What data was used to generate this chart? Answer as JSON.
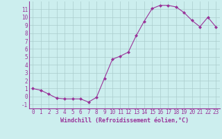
{
  "x": [
    0,
    1,
    2,
    3,
    4,
    5,
    6,
    7,
    8,
    9,
    10,
    11,
    12,
    13,
    14,
    15,
    16,
    17,
    18,
    19,
    20,
    21,
    22,
    23
  ],
  "y": [
    1.0,
    0.8,
    0.3,
    -0.2,
    -0.3,
    -0.3,
    -0.3,
    -0.7,
    -0.1,
    2.3,
    4.7,
    5.1,
    5.6,
    7.7,
    9.5,
    11.1,
    11.5,
    11.5,
    11.3,
    10.6,
    9.6,
    8.8,
    10.0,
    8.8
  ],
  "line_color": "#993399",
  "marker": "D",
  "marker_size": 2.0,
  "bg_color": "#cceeee",
  "grid_color": "#aacccc",
  "xlabel": "Windchill (Refroidissement éolien,°C)",
  "ylim": [
    -1.5,
    12.0
  ],
  "xlim": [
    -0.5,
    23.5
  ],
  "yticks": [
    -1,
    0,
    1,
    2,
    3,
    4,
    5,
    6,
    7,
    8,
    9,
    10,
    11
  ],
  "xticks": [
    0,
    1,
    2,
    3,
    4,
    5,
    6,
    7,
    8,
    9,
    10,
    11,
    12,
    13,
    14,
    15,
    16,
    17,
    18,
    19,
    20,
    21,
    22,
    23
  ],
  "tick_color": "#993399",
  "label_fontsize": 6.0,
  "tick_fontsize": 5.5,
  "spine_color": "#993399",
  "linewidth": 0.8
}
